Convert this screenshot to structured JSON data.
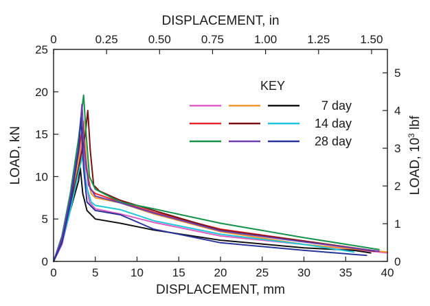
{
  "chart_data": {
    "type": "line",
    "title": "",
    "xlabel_bottom": "DISPLACEMENT, mm",
    "xlabel_top": "DISPLACEMENT, in",
    "ylabel_left": "LOAD, kN",
    "ylabel_right_prefix": "LOAD, 10",
    "ylabel_right_sup": "3",
    "ylabel_right_suffix": " lbf",
    "xlim": [
      0,
      40
    ],
    "ylim": [
      0,
      25
    ],
    "x_ticks": [
      "0",
      "5",
      "10",
      "15",
      "20",
      "25",
      "30",
      "35",
      "40"
    ],
    "y_ticks": [
      "0",
      "5",
      "10",
      "15",
      "20",
      "25"
    ],
    "x_top_ticks": [
      "0",
      "0.25",
      "0.50",
      "0.75",
      "1.00",
      "1.25",
      "1.50"
    ],
    "y_right_ticks": [
      "0",
      "1",
      "2",
      "3",
      "4",
      "5"
    ],
    "grid": false,
    "legend": {
      "title": "KEY",
      "placement": "top-right",
      "rows": [
        {
          "label": "7 day",
          "colors": [
            "#e05cc0",
            "#f0962a",
            "#111111"
          ]
        },
        {
          "label": "14 day",
          "colors": [
            "#e8262c",
            "#7a1010",
            "#1fc6d8"
          ]
        },
        {
          "label": "28 day",
          "colors": [
            "#15924a",
            "#6a3fb0",
            "#27349a"
          ]
        }
      ]
    },
    "series": [
      {
        "color": "#e05cc0",
        "points": [
          [
            0,
            0
          ],
          [
            1,
            2
          ],
          [
            2,
            6
          ],
          [
            3,
            11
          ],
          [
            3.5,
            14.5
          ],
          [
            3.8,
            10
          ],
          [
            4.3,
            7
          ],
          [
            5,
            6.2
          ],
          [
            8,
            5.6
          ],
          [
            12,
            4.6
          ],
          [
            20,
            3
          ],
          [
            30,
            2
          ],
          [
            40,
            1
          ]
        ]
      },
      {
        "color": "#f0962a",
        "points": [
          [
            0,
            0
          ],
          [
            1,
            2.5
          ],
          [
            2,
            7
          ],
          [
            3,
            12
          ],
          [
            3.6,
            16.5
          ],
          [
            4,
            11
          ],
          [
            4.5,
            8
          ],
          [
            5,
            7.5
          ],
          [
            8,
            6.9
          ],
          [
            12,
            5.6
          ],
          [
            20,
            3.5
          ],
          [
            30,
            2
          ],
          [
            40,
            1.1
          ]
        ]
      },
      {
        "color": "#111111",
        "points": [
          [
            0,
            0
          ],
          [
            1,
            2.5
          ],
          [
            2,
            6
          ],
          [
            3,
            9.5
          ],
          [
            3.2,
            11
          ],
          [
            3.5,
            8
          ],
          [
            4,
            6
          ],
          [
            5,
            5
          ],
          [
            8,
            4.5
          ],
          [
            12,
            3.7
          ],
          [
            20,
            2.5
          ],
          [
            30,
            1.6
          ],
          [
            36,
            1.3
          ],
          [
            38,
            1
          ]
        ]
      },
      {
        "color": "#e8262c",
        "points": [
          [
            0,
            0
          ],
          [
            1,
            2.8
          ],
          [
            2,
            7.5
          ],
          [
            3,
            13
          ],
          [
            3.5,
            15.8
          ],
          [
            3.9,
            11
          ],
          [
            4.4,
            8.5
          ],
          [
            5,
            8
          ],
          [
            8,
            7
          ],
          [
            12,
            5.8
          ],
          [
            20,
            3.8
          ],
          [
            30,
            2.4
          ],
          [
            39,
            1.2
          ]
        ]
      },
      {
        "color": "#7a1010",
        "points": [
          [
            0,
            0
          ],
          [
            1,
            2.5
          ],
          [
            2,
            6.5
          ],
          [
            3,
            11
          ],
          [
            3.8,
            15
          ],
          [
            4.1,
            17.8
          ],
          [
            4.4,
            13
          ],
          [
            4.8,
            9
          ],
          [
            5.5,
            8.3
          ],
          [
            8,
            7.2
          ],
          [
            12,
            6
          ],
          [
            20,
            3.7
          ],
          [
            30,
            2.4
          ],
          [
            38.5,
            1.2
          ]
        ]
      },
      {
        "color": "#1fc6d8",
        "points": [
          [
            0,
            0
          ],
          [
            1,
            2.2
          ],
          [
            2,
            6
          ],
          [
            3,
            10.5
          ],
          [
            3.5,
            12.5
          ],
          [
            3.9,
            9
          ],
          [
            4.5,
            7
          ],
          [
            5,
            6.6
          ],
          [
            8,
            6.1
          ],
          [
            12,
            4.8
          ],
          [
            20,
            3.2
          ],
          [
            30,
            2
          ],
          [
            36,
            1.1
          ]
        ]
      },
      {
        "color": "#15924a",
        "points": [
          [
            0,
            0
          ],
          [
            1,
            3
          ],
          [
            2,
            8
          ],
          [
            3,
            14.5
          ],
          [
            3.6,
            19.6
          ],
          [
            3.9,
            15
          ],
          [
            4.3,
            10
          ],
          [
            5,
            8.5
          ],
          [
            8,
            7
          ],
          [
            12,
            6.2
          ],
          [
            20,
            4.5
          ],
          [
            30,
            2.8
          ],
          [
            39,
            1.4
          ]
        ]
      },
      {
        "color": "#6a3fb0",
        "points": [
          [
            0,
            0
          ],
          [
            1,
            2.8
          ],
          [
            2,
            7.5
          ],
          [
            3,
            13.5
          ],
          [
            3.4,
            18.5
          ],
          [
            3.7,
            13
          ],
          [
            4.2,
            9
          ],
          [
            5,
            7.7
          ],
          [
            8,
            6.9
          ],
          [
            12,
            5.7
          ],
          [
            20,
            3.6
          ],
          [
            30,
            2.3
          ],
          [
            39,
            1.2
          ]
        ]
      },
      {
        "color": "#27349a",
        "points": [
          [
            0,
            0
          ],
          [
            1,
            2.2
          ],
          [
            2,
            6.8
          ],
          [
            3,
            13
          ],
          [
            3.3,
            17
          ],
          [
            3.6,
            11
          ],
          [
            4,
            7
          ],
          [
            5,
            6
          ],
          [
            8,
            5.5
          ],
          [
            12,
            3.8
          ],
          [
            20,
            2.2
          ],
          [
            30,
            1.3
          ],
          [
            37.5,
            0.7
          ]
        ]
      }
    ]
  }
}
